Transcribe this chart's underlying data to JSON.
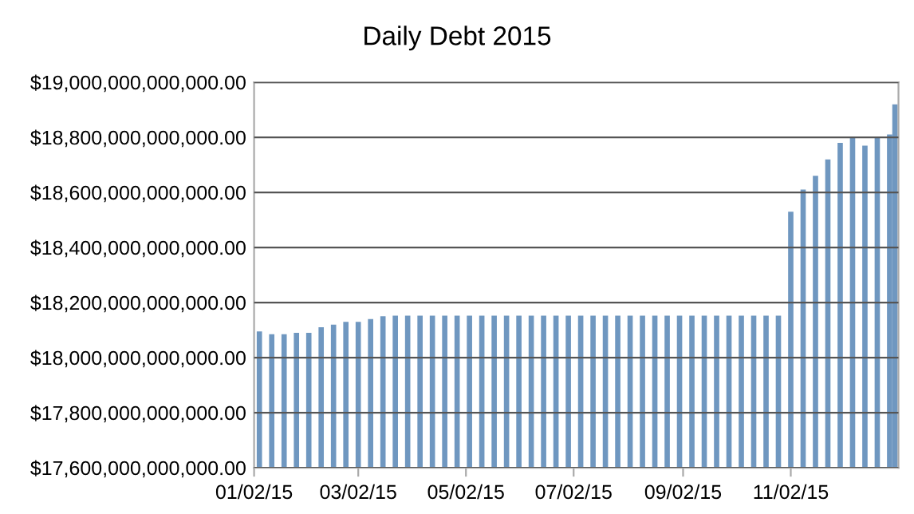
{
  "chart_data": {
    "type": "bar",
    "title": "Daily Debt 2015",
    "x": [
      "2015-01-05",
      "2015-01-12",
      "2015-01-19",
      "2015-01-26",
      "2015-02-02",
      "2015-02-09",
      "2015-02-16",
      "2015-02-23",
      "2015-03-02",
      "2015-03-09",
      "2015-03-16",
      "2015-03-23",
      "2015-03-30",
      "2015-04-06",
      "2015-04-13",
      "2015-04-20",
      "2015-04-27",
      "2015-05-04",
      "2015-05-11",
      "2015-05-18",
      "2015-05-25",
      "2015-06-01",
      "2015-06-08",
      "2015-06-15",
      "2015-06-22",
      "2015-06-29",
      "2015-07-06",
      "2015-07-13",
      "2015-07-20",
      "2015-07-27",
      "2015-08-03",
      "2015-08-10",
      "2015-08-17",
      "2015-08-24",
      "2015-08-31",
      "2015-09-07",
      "2015-09-14",
      "2015-09-21",
      "2015-09-28",
      "2015-10-05",
      "2015-10-12",
      "2015-10-19",
      "2015-10-26",
      "2015-11-02",
      "2015-11-09",
      "2015-11-16",
      "2015-11-23",
      "2015-11-30",
      "2015-12-07",
      "2015-12-14",
      "2015-12-21",
      "2015-12-28",
      "2015-12-31"
    ],
    "values": [
      18095000000000,
      18085000000000,
      18085000000000,
      18090000000000,
      18090000000000,
      18110000000000,
      18120000000000,
      18130000000000,
      18130000000000,
      18140000000000,
      18150000000000,
      18152000000000,
      18152000000000,
      18152000000000,
      18152000000000,
      18152000000000,
      18152000000000,
      18152000000000,
      18152000000000,
      18152000000000,
      18152000000000,
      18152000000000,
      18152000000000,
      18152000000000,
      18152000000000,
      18152000000000,
      18152000000000,
      18152000000000,
      18152000000000,
      18152000000000,
      18152000000000,
      18152000000000,
      18152000000000,
      18152000000000,
      18152000000000,
      18152000000000,
      18152000000000,
      18152000000000,
      18152000000000,
      18152000000000,
      18152000000000,
      18152000000000,
      18152000000000,
      18530000000000,
      18610000000000,
      18660000000000,
      18720000000000,
      18780000000000,
      18800000000000,
      18770000000000,
      18800000000000,
      18810000000000,
      18920000000000
    ],
    "color": "#6f97c0",
    "xlim": [
      "2015-01-02",
      "2016-01-02"
    ],
    "xticks": [
      {
        "value": "2015-01-02",
        "label": "01/02/15"
      },
      {
        "value": "2015-03-02",
        "label": "03/02/15"
      },
      {
        "value": "2015-05-02",
        "label": "05/02/15"
      },
      {
        "value": "2015-07-02",
        "label": "07/02/15"
      },
      {
        "value": "2015-09-02",
        "label": "09/02/15"
      },
      {
        "value": "2015-11-02",
        "label": "11/02/15"
      }
    ],
    "ylim": [
      17600000000000,
      19000000000000
    ],
    "yticks": [
      {
        "value": 17600000000000,
        "label": "$17,600,000,000,000.00"
      },
      {
        "value": 17800000000000,
        "label": "$17,800,000,000,000.00"
      },
      {
        "value": 18000000000000,
        "label": "$18,000,000,000,000.00"
      },
      {
        "value": 18200000000000,
        "label": "$18,200,000,000,000.00"
      },
      {
        "value": 18400000000000,
        "label": "$18,400,000,000,000.00"
      },
      {
        "value": 18600000000000,
        "label": "$18,600,000,000,000.00"
      },
      {
        "value": 18800000000000,
        "label": "$18,800,000,000,000.00"
      },
      {
        "value": 19000000000000,
        "label": "$19,000,000,000,000.00"
      }
    ],
    "grid": "y",
    "legend": false
  }
}
